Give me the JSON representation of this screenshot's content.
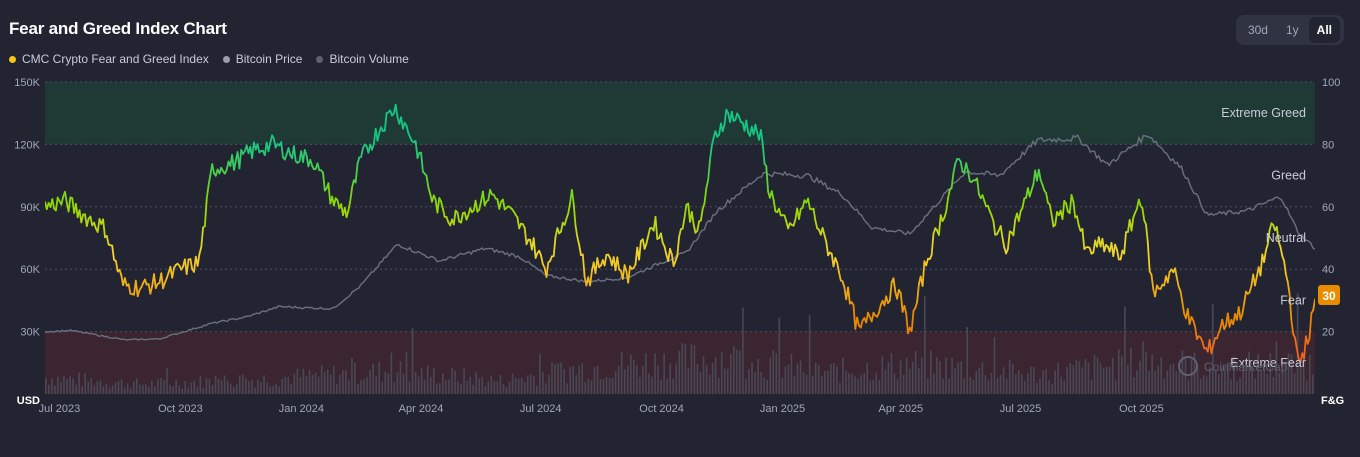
{
  "title": "Fear and Greed Index Chart",
  "legend": [
    {
      "label": "CMC Crypto Fear and Greed Index",
      "color": "#f5c518"
    },
    {
      "label": "Bitcoin Price",
      "color": "#9a9fb0"
    },
    {
      "label": "Bitcoin Volume",
      "color": "#5c6174"
    }
  ],
  "range_buttons": {
    "d30": "30d",
    "y1": "1y",
    "all": "All",
    "selected": "All"
  },
  "axis": {
    "left_unit": "USD",
    "right_unit": "F&G"
  },
  "watermark": "CoinMarketCap",
  "current_badge": "30",
  "chart_data": {
    "type": "line",
    "title": "Fear and Greed Index Chart",
    "x_ticks": [
      "Jul 2023",
      "Oct 2023",
      "Jan 2024",
      "Apr 2024",
      "Jul 2024",
      "Oct 2024",
      "Jan 2025",
      "Apr 2025",
      "Jul 2025",
      "Oct 2025"
    ],
    "left_axis": {
      "label": "USD",
      "ticks": [
        "150K",
        "120K",
        "90K",
        "60K",
        "30K"
      ],
      "ylim": [
        0,
        150000
      ]
    },
    "right_axis": {
      "label": "F&G",
      "ticks": [
        "100",
        "80",
        "60",
        "40",
        "20"
      ],
      "ylim": [
        0,
        100
      ]
    },
    "zones": [
      {
        "label": "Extreme Greed",
        "from": 80,
        "to": 100,
        "color": "#1f3a35"
      },
      {
        "label": "Greed",
        "from": 60,
        "to": 80
      },
      {
        "label": "Neutral",
        "from": 40,
        "to": 60
      },
      {
        "label": "Fear",
        "from": 20,
        "to": 40
      },
      {
        "label": "Extreme Fear",
        "from": 0,
        "to": 20,
        "color": "#3a2530"
      }
    ],
    "grid": true,
    "legend_position": "top-left",
    "x_range": [
      "2023-06-20",
      "2026-02-10"
    ],
    "series": [
      {
        "name": "CMC Crypto Fear and Greed Index",
        "axis": "right",
        "color_scale": {
          "0": "#ea3943",
          "25": "#ea8c00",
          "45": "#f3d42f",
          "60": "#93d900",
          "80": "#16c784"
        },
        "points": [
          [
            "2023-06-20",
            60
          ],
          [
            "2023-07-05",
            62
          ],
          [
            "2023-07-20",
            57
          ],
          [
            "2023-08-05",
            53
          ],
          [
            "2023-08-18",
            35
          ],
          [
            "2023-09-01",
            34
          ],
          [
            "2023-09-15",
            36
          ],
          [
            "2023-10-01",
            40
          ],
          [
            "2023-10-15",
            42
          ],
          [
            "2023-10-25",
            72
          ],
          [
            "2023-11-10",
            74
          ],
          [
            "2023-11-25",
            78
          ],
          [
            "2023-12-10",
            80
          ],
          [
            "2023-12-25",
            77
          ],
          [
            "2024-01-10",
            75
          ],
          [
            "2024-01-25",
            62
          ],
          [
            "2024-02-05",
            58
          ],
          [
            "2024-02-15",
            75
          ],
          [
            "2024-02-28",
            84
          ],
          [
            "2024-03-12",
            92
          ],
          [
            "2024-03-20",
            86
          ],
          [
            "2024-03-28",
            80
          ],
          [
            "2024-04-10",
            62
          ],
          [
            "2024-04-25",
            56
          ],
          [
            "2024-05-10",
            60
          ],
          [
            "2024-05-25",
            64
          ],
          [
            "2024-06-10",
            57
          ],
          [
            "2024-06-25",
            48
          ],
          [
            "2024-07-05",
            40
          ],
          [
            "2024-07-15",
            52
          ],
          [
            "2024-07-25",
            63
          ],
          [
            "2024-08-05",
            36
          ],
          [
            "2024-08-20",
            45
          ],
          [
            "2024-09-05",
            38
          ],
          [
            "2024-09-15",
            46
          ],
          [
            "2024-09-25",
            55
          ],
          [
            "2024-10-10",
            42
          ],
          [
            "2024-10-20",
            60
          ],
          [
            "2024-10-30",
            52
          ],
          [
            "2024-11-10",
            82
          ],
          [
            "2024-11-20",
            90
          ],
          [
            "2024-12-05",
            86
          ],
          [
            "2024-12-15",
            83
          ],
          [
            "2024-12-22",
            65
          ],
          [
            "2025-01-05",
            52
          ],
          [
            "2025-01-20",
            62
          ],
          [
            "2025-02-01",
            50
          ],
          [
            "2025-02-15",
            38
          ],
          [
            "2025-02-28",
            20
          ],
          [
            "2025-03-15",
            28
          ],
          [
            "2025-03-28",
            35
          ],
          [
            "2025-04-08",
            20
          ],
          [
            "2025-04-20",
            42
          ],
          [
            "2025-05-05",
            60
          ],
          [
            "2025-05-15",
            75
          ],
          [
            "2025-05-25",
            70
          ],
          [
            "2025-06-10",
            55
          ],
          [
            "2025-06-20",
            48
          ],
          [
            "2025-07-05",
            62
          ],
          [
            "2025-07-15",
            72
          ],
          [
            "2025-07-25",
            55
          ],
          [
            "2025-08-10",
            62
          ],
          [
            "2025-08-20",
            45
          ],
          [
            "2025-09-01",
            48
          ],
          [
            "2025-09-15",
            44
          ],
          [
            "2025-10-01",
            64
          ],
          [
            "2025-10-10",
            32
          ],
          [
            "2025-10-25",
            40
          ],
          [
            "2025-11-05",
            25
          ],
          [
            "2025-11-20",
            13
          ],
          [
            "2025-12-01",
            22
          ],
          [
            "2025-12-15",
            26
          ],
          [
            "2026-01-01",
            42
          ],
          [
            "2026-01-10",
            55
          ],
          [
            "2026-01-20",
            37
          ],
          [
            "2026-01-28",
            9
          ],
          [
            "2026-02-05",
            18
          ],
          [
            "2026-02-10",
            30
          ]
        ]
      },
      {
        "name": "Bitcoin Price",
        "axis": "left",
        "points": [
          [
            "2023-06-20",
            30000
          ],
          [
            "2023-07-10",
            30500
          ],
          [
            "2023-08-20",
            26000
          ],
          [
            "2023-09-15",
            26500
          ],
          [
            "2023-10-25",
            34000
          ],
          [
            "2023-11-20",
            37000
          ],
          [
            "2023-12-15",
            42000
          ],
          [
            "2024-01-25",
            41000
          ],
          [
            "2024-02-15",
            52000
          ],
          [
            "2024-03-14",
            72000
          ],
          [
            "2024-04-15",
            64000
          ],
          [
            "2024-05-20",
            70000
          ],
          [
            "2024-06-15",
            66000
          ],
          [
            "2024-07-05",
            57000
          ],
          [
            "2024-08-05",
            54000
          ],
          [
            "2024-09-05",
            56000
          ],
          [
            "2024-09-30",
            63000
          ],
          [
            "2024-10-20",
            68000
          ],
          [
            "2024-11-12",
            88000
          ],
          [
            "2024-12-17",
            106000
          ],
          [
            "2025-01-20",
            105000
          ],
          [
            "2025-02-15",
            96000
          ],
          [
            "2025-03-10",
            80000
          ],
          [
            "2025-04-08",
            77000
          ],
          [
            "2025-05-20",
            107000
          ],
          [
            "2025-06-15",
            105000
          ],
          [
            "2025-07-14",
            122000
          ],
          [
            "2025-08-14",
            123000
          ],
          [
            "2025-09-05",
            110000
          ],
          [
            "2025-10-06",
            125000
          ],
          [
            "2025-11-01",
            108000
          ],
          [
            "2025-11-20",
            86000
          ],
          [
            "2025-12-20",
            88000
          ],
          [
            "2026-01-15",
            95000
          ],
          [
            "2026-01-28",
            78000
          ],
          [
            "2026-02-10",
            70000
          ]
        ]
      },
      {
        "name": "Bitcoin Volume",
        "axis": "left",
        "type": "bar",
        "note_scale": "relative",
        "points": [
          [
            "2023-06-20",
            10000
          ],
          [
            "2023-09-01",
            6000
          ],
          [
            "2023-12-01",
            9000
          ],
          [
            "2024-03-10",
            14000
          ],
          [
            "2024-06-01",
            8000
          ],
          [
            "2024-08-05",
            16000
          ],
          [
            "2024-11-15",
            22000
          ],
          [
            "2025-02-01",
            13000
          ],
          [
            "2025-04-08",
            18000
          ],
          [
            "2025-07-15",
            12000
          ],
          [
            "2025-10-10",
            20000
          ],
          [
            "2025-11-20",
            16000
          ],
          [
            "2026-02-05",
            18000
          ]
        ]
      }
    ]
  }
}
